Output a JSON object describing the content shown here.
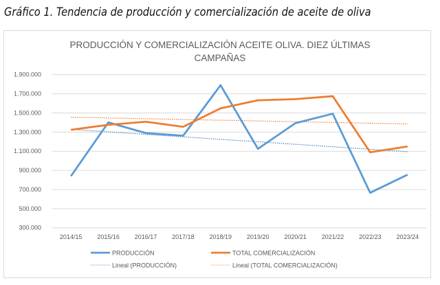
{
  "document_title": "Gráfico 1. Tendencia de producción y comercialización de aceite de oliva",
  "chart_data": {
    "type": "line",
    "title_lines": [
      "PRODUCCIÓN Y COMERCIALIZACIÓN ACEITE OLIVA. DIEZ ÚLTIMAS",
      "CAMPAÑAS"
    ],
    "xlabel": "",
    "ylabel": "",
    "categories": [
      "2014/15",
      "2015/16",
      "2016/17",
      "2017/18",
      "2018/19",
      "2019/20",
      "2020/21",
      "2021/22",
      "2022/23",
      "2023/24"
    ],
    "ylim": [
      300000,
      1900000
    ],
    "yticks": [
      300000,
      500000,
      700000,
      900000,
      1100000,
      1300000,
      1500000,
      1700000,
      1900000
    ],
    "ytick_labels": [
      "300.000",
      "500.000",
      "700.000",
      "900.000",
      "1.100.000",
      "1.300.000",
      "1.500.000",
      "1.700.000",
      "1.900.000"
    ],
    "grid": true,
    "legend_position": "bottom",
    "series": [
      {
        "name": "PRODUCCIÓN",
        "color": "#5b9bd5",
        "style": "solid",
        "values": [
          840000,
          1401000,
          1290000,
          1262000,
          1790000,
          1125000,
          1393000,
          1492000,
          666000,
          855000
        ]
      },
      {
        "name": "TOTAL COMERCIALIZACIÓN",
        "color": "#ed7d31",
        "style": "solid",
        "values": [
          1324000,
          1376000,
          1408000,
          1355000,
          1548000,
          1632000,
          1644000,
          1675000,
          1089000,
          1150000
        ]
      }
    ],
    "trendlines": [
      {
        "name": "Lineal (PRODUCCIÓN)",
        "of": "PRODUCCIÓN",
        "color": "#4a7fc0",
        "style": "dotted",
        "type": "linear"
      },
      {
        "name": "Lineal (TOTAL COMERCIALIZACIÓN)",
        "of": "TOTAL COMERCIALIZACIÓN",
        "color": "#ed7d31",
        "style": "dotted",
        "type": "linear"
      }
    ]
  }
}
